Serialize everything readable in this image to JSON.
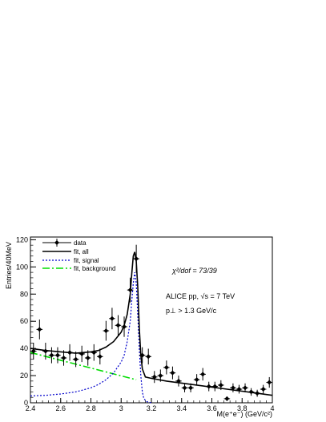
{
  "chart_data": {
    "type": "scatter",
    "xlabel": "M(e⁺e⁻) (GeV/c²)",
    "ylabel": "Entries/40MeV",
    "xlim": [
      2.4,
      4.0
    ],
    "ylim": [
      0,
      122
    ],
    "x_ticks": [
      "2.4",
      "2.6",
      "2.8",
      "3",
      "3.2",
      "3.4",
      "3.6",
      "3.8",
      "4"
    ],
    "y_ticks": [
      "0",
      "20",
      "40",
      "60",
      "80",
      "100",
      "120"
    ],
    "legend_placement": "top-left",
    "legend": [
      "data",
      "fit, all",
      "fit, signal",
      "fit, background"
    ],
    "annotations": [
      "χ²/dof = 73/39",
      "ALICE pp, √s = 7 TeV",
      "p⊥ > 1.3 GeV/c"
    ],
    "colors": {
      "data": "#000000",
      "fit_all": "#000000",
      "fit_signal": "#0000cc",
      "fit_background": "#00dd00"
    },
    "series": [
      {
        "name": "data",
        "style": "markers-with-error-bars",
        "x": [
          2.42,
          2.46,
          2.5,
          2.54,
          2.58,
          2.62,
          2.66,
          2.7,
          2.74,
          2.78,
          2.82,
          2.86,
          2.9,
          2.94,
          2.98,
          3.02,
          3.06,
          3.1,
          3.14,
          3.18,
          3.22,
          3.26,
          3.3,
          3.34,
          3.38,
          3.42,
          3.46,
          3.5,
          3.54,
          3.58,
          3.62,
          3.66,
          3.7,
          3.74,
          3.78,
          3.82,
          3.86,
          3.9,
          3.94,
          3.98
        ],
        "y": [
          38,
          54,
          38,
          35,
          35,
          33,
          37,
          32,
          36,
          33,
          37,
          34,
          53,
          62,
          57,
          56,
          83,
          106,
          35,
          34,
          19,
          20,
          26,
          22,
          16,
          11,
          11,
          17,
          21,
          12,
          12,
          13,
          3,
          11,
          10,
          11,
          8,
          7,
          10,
          15
        ],
        "y_err": [
          6.2,
          7.3,
          6.2,
          5.9,
          5.9,
          5.7,
          6.1,
          5.7,
          6.0,
          5.7,
          6.1,
          5.8,
          7.3,
          7.9,
          7.5,
          7.5,
          9.1,
          10.3,
          5.9,
          5.8,
          4.4,
          4.5,
          5.1,
          4.7,
          4.0,
          3.3,
          3.3,
          4.1,
          4.6,
          3.5,
          3.5,
          3.6,
          1.7,
          3.3,
          3.2,
          3.3,
          2.8,
          2.6,
          3.2,
          3.9
        ]
      },
      {
        "name": "fit, all",
        "style": "solid-line",
        "x": [
          2.4,
          2.5,
          2.6,
          2.7,
          2.8,
          2.85,
          2.9,
          2.95,
          3.0,
          3.02,
          3.04,
          3.06,
          3.07,
          3.08,
          3.09,
          3.1,
          3.11,
          3.12,
          3.13,
          3.14,
          3.16,
          3.2,
          3.3,
          3.5,
          3.7,
          3.9,
          4.0
        ],
        "y": [
          40,
          38.5,
          37.5,
          36.5,
          37.5,
          38.5,
          41,
          45,
          52,
          57,
          65,
          80,
          95,
          108,
          111,
          104,
          85,
          55,
          35,
          25,
          19,
          18,
          16,
          13,
          10,
          7,
          5.5
        ]
      },
      {
        "name": "fit, signal",
        "style": "dashed-line",
        "x": [
          2.4,
          2.5,
          2.6,
          2.7,
          2.8,
          2.85,
          2.9,
          2.95,
          3.0,
          3.02,
          3.04,
          3.06,
          3.07,
          3.08,
          3.09,
          3.1,
          3.11,
          3.12,
          3.13,
          3.14,
          3.15,
          3.17,
          3.2
        ],
        "y": [
          5,
          5.5,
          6.5,
          8,
          11,
          13.5,
          17,
          22,
          30,
          35,
          45,
          60,
          75,
          88,
          96,
          88,
          65,
          40,
          20,
          8,
          3,
          0.8,
          0
        ]
      },
      {
        "name": "fit, background",
        "style": "dash-dot-line",
        "x": [
          2.4,
          3.1
        ],
        "y": [
          37,
          17
        ]
      }
    ]
  }
}
